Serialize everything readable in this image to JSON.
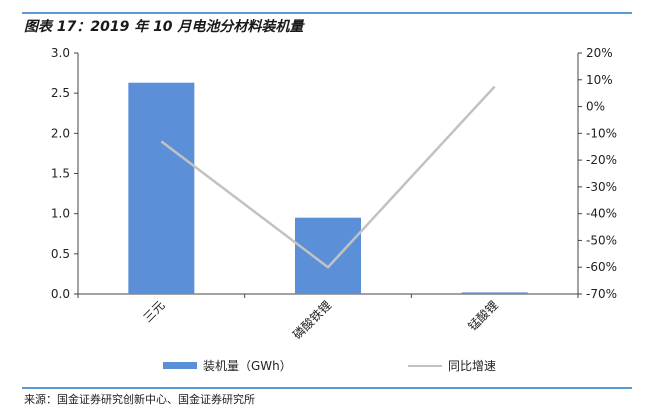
{
  "header": {
    "title": "图表 17：2019 年 10 月电池分材料装机量"
  },
  "footer": {
    "source": "来源：国金证券研究创新中心、国金证券研究所"
  },
  "colors": {
    "bar": "#5b90d8",
    "line": "#c2c2c2",
    "rule": "#5b9bd5"
  },
  "chart_data": {
    "type": "bar",
    "categories": [
      "三元",
      "磷酸铁锂",
      "锰酸锂"
    ],
    "series": [
      {
        "name": "装机量（GWh）",
        "type": "bar",
        "axis": "left",
        "values": [
          2.63,
          0.95,
          0.02
        ]
      },
      {
        "name": "同比增速",
        "type": "line",
        "axis": "right",
        "values": [
          -13,
          -60,
          7.5
        ]
      }
    ],
    "ylim": [
      0,
      3.0
    ],
    "y_ticks": [
      "0.0",
      "0.5",
      "1.0",
      "1.5",
      "2.0",
      "2.5",
      "3.0"
    ],
    "y2lim": [
      -70,
      20
    ],
    "y2_ticks": [
      "-70%",
      "-60%",
      "-50%",
      "-40%",
      "-30%",
      "-20%",
      "-10%",
      "0%",
      "10%",
      "20%"
    ],
    "grid": false,
    "legend_position": "bottom"
  }
}
